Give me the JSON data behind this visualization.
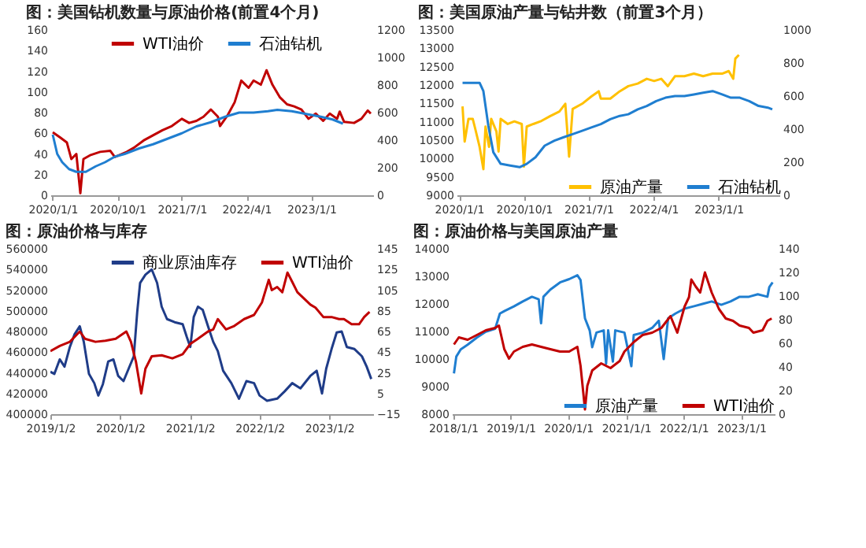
{
  "chart_data": [
    {
      "type": "line",
      "title": "图：美国钻机数量与原油价格(前置4个月)",
      "legend": "top",
      "xlim": [
        "2019-12-22",
        "2023-09-20"
      ],
      "xticks": [
        {
          "value": "2020-01-01",
          "label": "2020/1/1"
        },
        {
          "value": "2020-10-01",
          "label": "2020/10/1"
        },
        {
          "value": "2021-07-01",
          "label": "2021/7/1"
        },
        {
          "value": "2022-04-01",
          "label": "2022/4/1"
        },
        {
          "value": "2023-01-01",
          "label": "2023/1/1"
        }
      ],
      "ylim": [
        0,
        160
      ],
      "yticks": [
        0,
        20,
        40,
        60,
        80,
        100,
        120,
        140,
        160
      ],
      "y2lim": [
        0,
        1200
      ],
      "y2ticks": [
        0,
        200,
        400,
        600,
        800,
        1000,
        1200
      ],
      "series": [
        {
          "name": "WTI油价",
          "color": "#c00000",
          "x": [
            "2020-01-01",
            "2020-02-01",
            "2020-03-01",
            "2020-03-20",
            "2020-04-10",
            "2020-04-27",
            "2020-05-10",
            "2020-06-10",
            "2020-07-20",
            "2020-09-01",
            "2020-09-20",
            "2020-10-10",
            "2020-11-10",
            "2020-12-10",
            "2021-01-20",
            "2021-03-01",
            "2021-04-10",
            "2021-05-20",
            "2021-07-01",
            "2021-08-01",
            "2021-09-01",
            "2021-10-01",
            "2021-11-01",
            "2021-12-01",
            "2021-12-10",
            "2022-01-10",
            "2022-02-10",
            "2022-03-10",
            "2022-04-10",
            "2022-05-01",
            "2022-06-01",
            "2022-06-25",
            "2022-07-20",
            "2022-08-20",
            "2022-09-20",
            "2022-10-20",
            "2022-11-20",
            "2022-12-20",
            "2023-01-20",
            "2023-02-20",
            "2023-03-20",
            "2023-04-20",
            "2023-05-01",
            "2023-05-20",
            "2023-07-01",
            "2023-08-01",
            "2023-08-28",
            "2023-09-10"
          ],
          "values": [
            61,
            56,
            51,
            35,
            40,
            2,
            35,
            39,
            42,
            43,
            37,
            39,
            42,
            46,
            53,
            58,
            63,
            67,
            74,
            70,
            72,
            76,
            83,
            76,
            67,
            77,
            90,
            111,
            104,
            111,
            107,
            121,
            107,
            95,
            88,
            86,
            83,
            74,
            79,
            72,
            79,
            74,
            81,
            71,
            70,
            74,
            82,
            79
          ]
        },
        {
          "name": "石油钻机",
          "color": "#1f7ed0",
          "axis": "y2",
          "x": [
            "2020-01-01",
            "2020-01-20",
            "2020-02-10",
            "2020-03-10",
            "2020-04-10",
            "2020-05-20",
            "2020-07-01",
            "2020-08-10",
            "2020-09-20",
            "2020-11-01",
            "2021-01-01",
            "2021-03-01",
            "2021-05-01",
            "2021-07-01",
            "2021-09-01",
            "2021-11-01",
            "2022-01-01",
            "2022-03-01",
            "2022-05-01",
            "2022-07-01",
            "2022-08-10",
            "2022-10-10",
            "2022-12-10",
            "2023-02-10",
            "2023-04-01",
            "2023-05-15"
          ],
          "values": [
            440,
            300,
            240,
            190,
            170,
            170,
            210,
            240,
            280,
            300,
            340,
            370,
            410,
            450,
            500,
            530,
            570,
            600,
            600,
            610,
            620,
            610,
            590,
            570,
            550,
            520
          ]
        }
      ]
    },
    {
      "type": "line",
      "title": "图：美国原油产量与钻井数（前置3个月）",
      "legend": "bottom",
      "xlim": [
        "2019-12-22",
        "2023-09-15"
      ],
      "xticks": [
        {
          "value": "2020-01-01",
          "label": "2020/1/1"
        },
        {
          "value": "2020-10-01",
          "label": "2020/10/1"
        },
        {
          "value": "2021-07-01",
          "label": "2021/7/1"
        },
        {
          "value": "2022-04-01",
          "label": "2022/4/1"
        },
        {
          "value": "2023-01-01",
          "label": "2023/1/1"
        }
      ],
      "ylim": [
        9000,
        13500
      ],
      "yticks": [
        9000,
        9500,
        10000,
        10500,
        11000,
        11500,
        12000,
        12500,
        13000,
        13500
      ],
      "y2lim": [
        0,
        1000
      ],
      "y2ticks": [
        0,
        200,
        400,
        600,
        800,
        1000
      ],
      "series": [
        {
          "name": "原油产量",
          "color": "#ffc000",
          "x": [
            "2020-01-16",
            "2020-01-25",
            "2020-02-10",
            "2020-02-28",
            "2020-03-10",
            "2020-03-28",
            "2020-04-13",
            "2020-04-22",
            "2020-05-07",
            "2020-05-16",
            "2020-06-07",
            "2020-06-16",
            "2020-06-25",
            "2020-07-25",
            "2020-08-22",
            "2020-09-22",
            "2020-10-01",
            "2020-10-13",
            "2020-11-10",
            "2020-12-10",
            "2021-01-19",
            "2021-02-28",
            "2021-03-25",
            "2021-04-10",
            "2021-04-25",
            "2021-06-04",
            "2021-07-13",
            "2021-08-13",
            "2021-08-22",
            "2021-10-01",
            "2021-11-10",
            "2021-12-16",
            "2022-01-25",
            "2022-03-04",
            "2022-04-04",
            "2022-05-04",
            "2022-06-01",
            "2022-07-01",
            "2022-08-10",
            "2022-09-19",
            "2022-10-28",
            "2022-12-07",
            "2023-01-16",
            "2023-02-13",
            "2023-03-04",
            "2023-03-13",
            "2023-03-28"
          ],
          "values": [
            11420,
            10460,
            11080,
            11080,
            10800,
            10320,
            9710,
            10870,
            10320,
            11080,
            10740,
            10190,
            11080,
            10940,
            11010,
            10940,
            9780,
            10870,
            10940,
            11010,
            11150,
            11280,
            11490,
            10050,
            11350,
            11490,
            11690,
            11830,
            11630,
            11630,
            11830,
            11970,
            12040,
            12170,
            12110,
            12170,
            11970,
            12240,
            12240,
            12310,
            12240,
            12310,
            12310,
            12380,
            12170,
            12720,
            12820
          ]
        },
        {
          "name": "石油钻机",
          "color": "#1f7ed0",
          "axis": "y2",
          "x": [
            "2020-01-16",
            "2020-02-19",
            "2020-03-28",
            "2020-04-13",
            "2020-05-04",
            "2020-05-25",
            "2020-06-25",
            "2020-08-04",
            "2020-09-13",
            "2020-10-13",
            "2020-11-19",
            "2020-12-28",
            "2021-02-07",
            "2021-03-16",
            "2021-04-25",
            "2021-06-04",
            "2021-07-13",
            "2021-08-22",
            "2021-10-01",
            "2021-11-10",
            "2021-12-16",
            "2022-01-25",
            "2022-03-04",
            "2022-04-13",
            "2022-05-22",
            "2022-07-01",
            "2022-08-10",
            "2022-09-19",
            "2022-10-28",
            "2022-12-07",
            "2023-01-16",
            "2023-02-22",
            "2023-04-01",
            "2023-05-10",
            "2023-06-19",
            "2023-07-28",
            "2023-08-16"
          ],
          "values": [
            680,
            680,
            680,
            630,
            420,
            260,
            190,
            180,
            170,
            190,
            230,
            300,
            330,
            350,
            370,
            390,
            410,
            430,
            460,
            480,
            490,
            520,
            540,
            570,
            590,
            600,
            600,
            610,
            620,
            630,
            610,
            590,
            590,
            570,
            540,
            530,
            520
          ]
        }
      ]
    },
    {
      "type": "line",
      "title": "图：原油价格与库存",
      "legend": "top",
      "xlim": [
        "2019-01-02",
        "2023-08-20"
      ],
      "xticks": [
        {
          "value": "2019-01-02",
          "label": "2019/1/2"
        },
        {
          "value": "2020-01-02",
          "label": "2020/1/2"
        },
        {
          "value": "2021-01-02",
          "label": "2021/1/2"
        },
        {
          "value": "2022-01-02",
          "label": "2022/1/2"
        },
        {
          "value": "2023-01-02",
          "label": "2023/1/2"
        }
      ],
      "ylim": [
        400000,
        560000
      ],
      "yticks": [
        400000,
        420000,
        440000,
        460000,
        480000,
        500000,
        520000,
        540000,
        560000
      ],
      "y2lim": [
        -15,
        145
      ],
      "y2ticks": [
        -15,
        5,
        25,
        45,
        65,
        85,
        105,
        125,
        145
      ],
      "series": [
        {
          "name": "商业原油库存",
          "color": "#1f3c88",
          "x": [
            "2019-01-02",
            "2019-01-23",
            "2019-02-20",
            "2019-03-17",
            "2019-04-14",
            "2019-05-08",
            "2019-06-05",
            "2019-06-26",
            "2019-07-23",
            "2019-08-20",
            "2019-09-10",
            "2019-10-04",
            "2019-11-01",
            "2019-11-28",
            "2019-12-23",
            "2020-01-20",
            "2020-02-16",
            "2020-03-14",
            "2020-04-01",
            "2020-04-16",
            "2020-05-14",
            "2020-06-16",
            "2020-07-14",
            "2020-08-07",
            "2020-09-04",
            "2020-10-14",
            "2020-11-25",
            "2020-12-16",
            "2021-01-04",
            "2021-01-22",
            "2021-02-13",
            "2021-03-10",
            "2021-04-07",
            "2021-05-04",
            "2021-05-28",
            "2021-06-25",
            "2021-08-07",
            "2021-09-16",
            "2021-10-25",
            "2021-12-04",
            "2022-01-02",
            "2022-02-10",
            "2022-04-04",
            "2022-05-13",
            "2022-06-22",
            "2022-08-04",
            "2022-09-25",
            "2022-10-28",
            "2022-11-25",
            "2022-12-17",
            "2023-01-14",
            "2023-02-10",
            "2023-03-08",
            "2023-04-04",
            "2023-05-14",
            "2023-06-22",
            "2023-07-17",
            "2023-08-10"
          ],
          "values": [
            441000,
            439000,
            453000,
            446000,
            465000,
            477000,
            485000,
            470000,
            439000,
            430000,
            418000,
            429000,
            451000,
            453000,
            437000,
            432000,
            444000,
            456000,
            499000,
            527000,
            535000,
            540000,
            527000,
            504000,
            492000,
            489000,
            487000,
            475000,
            465000,
            494000,
            504000,
            501000,
            485000,
            470000,
            461000,
            442000,
            430000,
            415000,
            432000,
            430000,
            418000,
            413000,
            415000,
            422000,
            430000,
            425000,
            437000,
            442000,
            420000,
            444000,
            463000,
            479000,
            480000,
            465000,
            463000,
            456000,
            446000,
            434000
          ]
        },
        {
          "name": "WTI油价",
          "color": "#c00000",
          "axis": "y2",
          "x": [
            "2019-01-02",
            "2019-02-20",
            "2019-04-14",
            "2019-06-05",
            "2019-07-02",
            "2019-08-26",
            "2019-10-17",
            "2019-12-10",
            "2020-02-04",
            "2020-02-28",
            "2020-03-25",
            "2020-04-22",
            "2020-05-14",
            "2020-06-16",
            "2020-08-07",
            "2020-10-02",
            "2020-11-25",
            "2021-01-04",
            "2021-02-13",
            "2021-04-07",
            "2021-05-04",
            "2021-05-28",
            "2021-07-10",
            "2021-08-19",
            "2021-10-13",
            "2021-12-04",
            "2022-01-14",
            "2022-02-19",
            "2022-03-07",
            "2022-04-04",
            "2022-05-01",
            "2022-05-28",
            "2022-06-22",
            "2022-07-19",
            "2022-08-28",
            "2022-09-25",
            "2022-10-22",
            "2022-12-02",
            "2023-01-14",
            "2023-02-22",
            "2023-03-20",
            "2023-04-29",
            "2023-06-07",
            "2023-07-04",
            "2023-08-01"
          ],
          "values": [
            46,
            51,
            55,
            65,
            58,
            55,
            56,
            58,
            65,
            55,
            36,
            5,
            29,
            41,
            42,
            39,
            43,
            53,
            58,
            65,
            67,
            77,
            67,
            70,
            77,
            81,
            93,
            115,
            105,
            108,
            103,
            122,
            113,
            103,
            96,
            91,
            88,
            79,
            79,
            77,
            77,
            72,
            72,
            79,
            84
          ]
        }
      ]
    },
    {
      "type": "line",
      "title": "图：原油价格与美国原油产量",
      "legend": "bottom",
      "xlim": [
        "2017-12-25",
        "2023-08-01"
      ],
      "xticks": [
        {
          "value": "2018-01-01",
          "label": "2018/1/1"
        },
        {
          "value": "2019-01-01",
          "label": "2019/1/1"
        },
        {
          "value": "2020-01-01",
          "label": "2020/1/1"
        },
        {
          "value": "2021-01-01",
          "label": "2021/1/1"
        },
        {
          "value": "2022-01-01",
          "label": "2022/1/1"
        },
        {
          "value": "2023-01-01",
          "label": "2023/1/1"
        }
      ],
      "ylim": [
        8000,
        14000
      ],
      "yticks": [
        8000,
        9000,
        10000,
        11000,
        12000,
        13000,
        14000
      ],
      "y2lim": [
        0,
        140
      ],
      "y2ticks": [
        0,
        20,
        40,
        60,
        80,
        100,
        120,
        140
      ],
      "series": [
        {
          "name": "原油产量",
          "color": "#1f7ed0",
          "x": [
            "2018-01-07",
            "2018-01-22",
            "2018-02-19",
            "2018-04-04",
            "2018-06-01",
            "2018-07-28",
            "2018-09-25",
            "2018-10-25",
            "2018-11-22",
            "2019-01-22",
            "2019-03-19",
            "2019-05-16",
            "2019-06-28",
            "2019-07-13",
            "2019-07-28",
            "2019-09-10",
            "2019-11-10",
            "2020-01-07",
            "2020-02-28",
            "2020-03-19",
            "2020-04-16",
            "2020-05-16",
            "2020-06-01",
            "2020-06-28",
            "2020-08-13",
            "2020-08-28",
            "2020-09-10",
            "2020-10-10",
            "2020-10-25",
            "2020-12-22",
            "2021-02-04",
            "2021-02-19",
            "2021-04-19",
            "2021-06-16",
            "2021-07-28",
            "2021-08-28",
            "2021-09-25",
            "2021-11-10",
            "2022-01-07",
            "2022-03-04",
            "2022-05-01",
            "2022-06-28",
            "2022-08-28",
            "2022-10-25",
            "2022-12-22",
            "2023-02-19",
            "2023-04-16",
            "2023-06-16",
            "2023-06-28",
            "2023-07-19"
          ],
          "values": [
            9480,
            10090,
            10350,
            10520,
            10780,
            10990,
            11100,
            11650,
            11740,
            11910,
            12090,
            12260,
            12170,
            11300,
            12260,
            12520,
            12780,
            12900,
            13040,
            12870,
            11480,
            11040,
            10430,
            10960,
            11040,
            9830,
            11040,
            9910,
            11040,
            10960,
            9740,
            10870,
            10960,
            11130,
            11390,
            10000,
            11480,
            11650,
            11830,
            11910,
            12000,
            12090,
            11970,
            12090,
            12260,
            12260,
            12350,
            12260,
            12610,
            12780
          ]
        },
        {
          "name": "WTI油价",
          "color": "#c00000",
          "axis": "y2",
          "x": [
            "2018-01-07",
            "2018-02-07",
            "2018-04-04",
            "2018-06-01",
            "2018-07-28",
            "2018-09-25",
            "2018-10-19",
            "2018-11-22",
            "2018-12-22",
            "2019-01-22",
            "2019-03-19",
            "2019-05-16",
            "2019-07-13",
            "2019-09-10",
            "2019-11-10",
            "2020-01-07",
            "2020-02-28",
            "2020-03-19",
            "2020-04-04",
            "2020-04-16",
            "2020-05-01",
            "2020-06-01",
            "2020-07-28",
            "2020-09-25",
            "2020-11-22",
            "2020-12-22",
            "2021-02-19",
            "2021-04-16",
            "2021-06-16",
            "2021-08-13",
            "2021-10-10",
            "2021-11-22",
            "2022-01-07",
            "2022-02-04",
            "2022-02-19",
            "2022-03-19",
            "2022-04-16",
            "2022-05-16",
            "2022-06-28",
            "2022-08-13",
            "2022-09-25",
            "2022-11-10",
            "2022-12-22",
            "2023-02-19",
            "2023-03-19",
            "2023-05-16",
            "2023-06-16",
            "2023-07-13"
          ],
          "values": [
            59,
            65,
            63,
            67,
            71,
            73,
            75,
            55,
            47,
            53,
            57,
            59,
            57,
            55,
            53,
            53,
            57,
            41,
            20,
            4,
            24,
            37,
            43,
            39,
            45,
            53,
            61,
            67,
            69,
            73,
            83,
            69,
            91,
            99,
            114,
            108,
            103,
            120,
            103,
            89,
            81,
            79,
            75,
            73,
            69,
            71,
            79,
            81
          ]
        }
      ]
    }
  ]
}
